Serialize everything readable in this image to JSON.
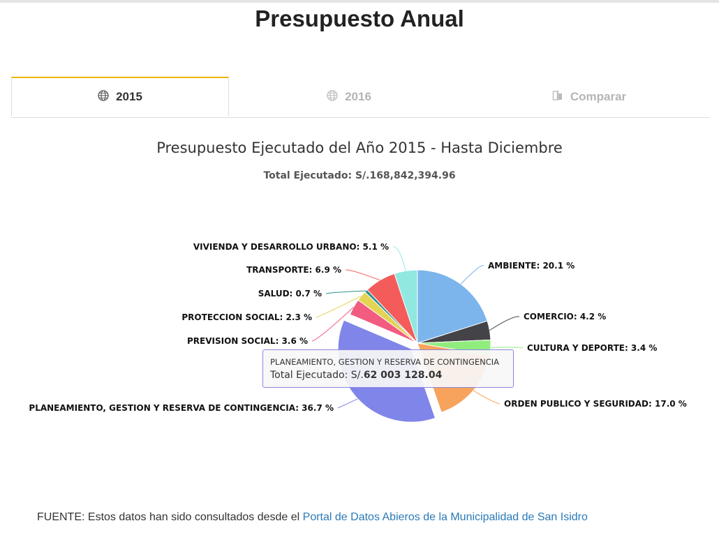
{
  "page": {
    "title": "Presupuesto Anual"
  },
  "tabs": [
    {
      "label": "2015",
      "icon": "globe-icon",
      "active": true
    },
    {
      "label": "2016",
      "icon": "globe-icon",
      "active": false
    },
    {
      "label": "Comparar",
      "icon": "compare-icon",
      "active": false
    }
  ],
  "header": {
    "chart_title": "Presupuesto Ejecutado del Año 2015 - Hasta Diciembre",
    "total_label": "Total Ejecutado:",
    "total_value": "S/.168,842,394.96"
  },
  "tooltip": {
    "title": "PLANEAMIENTO, GESTION Y RESERVA DE CONTINGENCIA",
    "label": "Total Ejecutado:",
    "currency": "S/.",
    "value": "62 003 128.04"
  },
  "footer": {
    "text": "FUENTE: Estos datos han sido consultados desde el",
    "link": "Portal de Datos Abieros de la Municipalidad de San Isidro"
  },
  "chart_data": {
    "type": "pie",
    "title": "Presupuesto Ejecutado del Año 2015 - Hasta Diciembre",
    "slices": [
      {
        "label": "AMBIENTE",
        "display": "AMBIENTE: 20.1 %",
        "value": 20.1,
        "color": "#7cb5ec"
      },
      {
        "label": "COMERCIO",
        "display": "COMERCIO: 4.2 %",
        "value": 4.2,
        "color": "#434348"
      },
      {
        "label": "CULTURA Y DEPORTE",
        "display": "CULTURA Y DEPORTE: 3.4 %",
        "value": 3.4,
        "color": "#90ed7d"
      },
      {
        "label": "ORDEN PUBLICO Y SEGURIDAD",
        "display": "ORDEN PUBLICO Y SEGURIDAD: 17.0 %",
        "value": 17.0,
        "color": "#f7a35c"
      },
      {
        "label": "PLANEAMIENTO, GESTION Y RESERVA DE CONTINGENCIA",
        "display": "PLANEAMIENTO, GESTION Y RESERVA DE CONTINGENCIA: 36.7 %",
        "value": 36.7,
        "color": "#8085e9",
        "sliced": true
      },
      {
        "label": "PREVISION SOCIAL",
        "display": "PREVISION SOCIAL: 3.6 %",
        "value": 3.6,
        "color": "#f15c80"
      },
      {
        "label": "PROTECCION SOCIAL",
        "display": "PROTECCION SOCIAL: 2.3 %",
        "value": 2.3,
        "color": "#e4d354"
      },
      {
        "label": "SALUD",
        "display": "SALUD: 0.7 %",
        "value": 0.7,
        "color": "#2b908f"
      },
      {
        "label": "TRANSPORTE",
        "display": "TRANSPORTE: 6.9 %",
        "value": 6.9,
        "color": "#f45b5b"
      },
      {
        "label": "VIVIENDA Y DESARROLLO URBANO",
        "display": "VIVIENDA Y DESARROLLO URBANO: 5.1 %",
        "value": 5.1,
        "color": "#91e8e1"
      }
    ]
  }
}
